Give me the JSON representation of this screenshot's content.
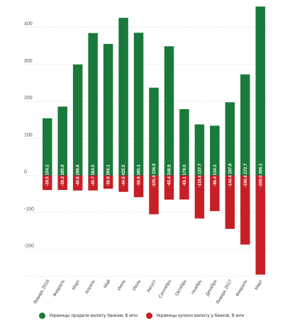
{
  "chart_data": {
    "type": "bar",
    "categories": [
      "Январь 2016",
      "Февраль",
      "Март",
      "Апрель",
      "Май",
      "Июнь",
      "Июль",
      "Август",
      "Сентябрь",
      "Октябрь",
      "Ноябрь",
      "Декабрь",
      "Январь 2017",
      "Февраль",
      "Март"
    ],
    "series": [
      {
        "name": "Украинцы продали валюту банкам, $ млн",
        "color": "#1a7a3c",
        "values": [
          154.2,
          185.9,
          299.6,
          384.5,
          355.1,
          425.5,
          385.3,
          236.9,
          348.8,
          179.0,
          137.7,
          134.3,
          197.6,
          272.7,
          456.1
        ],
        "labels": [
          "154.2",
          "185.9",
          "299.6",
          "384.5",
          "355.1",
          "425.5",
          "385.3",
          "236.9",
          "348.8",
          "179.0",
          "137.7",
          "134.3",
          "197.6",
          "272.7",
          "456.1"
        ]
      },
      {
        "name": "Украинцы купили валюту у банков, $ млн",
        "color": "#c62026",
        "values": [
          -39.5,
          -39.3,
          -40.8,
          -40.7,
          -36.0,
          -44.5,
          -58.9,
          -105.0,
          -65.4,
          -65.1,
          -116.4,
          -96.4,
          -144.4,
          -186.8,
          -268.0
        ],
        "labels": [
          "-39.5",
          "-39.3",
          "-40.8",
          "-40.7",
          "-36.0",
          "-44.5",
          "-58.9",
          "-105.0",
          "-65.4",
          "-65.1",
          "-116.4",
          "-96.4",
          "-144.4",
          "-186.8",
          "-268.0"
        ]
      }
    ],
    "yticks": [
      "400",
      "300",
      "200",
      "100",
      "0",
      "-100",
      "-200"
    ],
    "ytick_values": [
      400,
      300,
      200,
      100,
      0,
      -100,
      -200
    ],
    "ylim": [
      -270,
      460
    ],
    "grid": true,
    "legend_position": "bottom"
  }
}
